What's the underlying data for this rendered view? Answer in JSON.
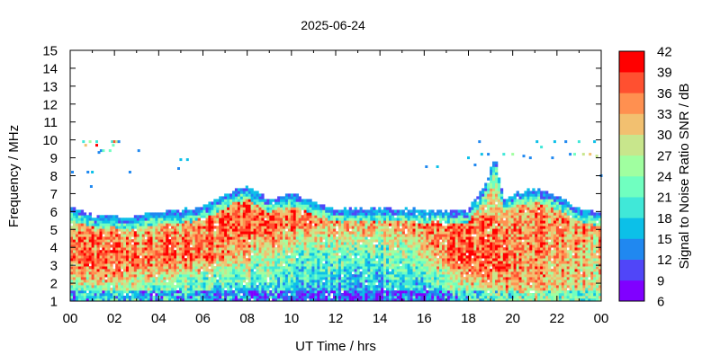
{
  "chart_data": {
    "type": "heatmap",
    "title": "2025-06-24",
    "xlabel": "UT Time / hrs",
    "ylabel": "Frequency / MHz",
    "colorbar_label": "Signal to Noise Ratio SNR / dB",
    "xlim": [
      0,
      24
    ],
    "ylim": [
      1,
      15
    ],
    "x_tick_labels": [
      "00",
      "02",
      "04",
      "06",
      "08",
      "10",
      "12",
      "14",
      "16",
      "18",
      "20",
      "22",
      "00"
    ],
    "y_tick_labels": [
      "1",
      "2",
      "3",
      "4",
      "5",
      "6",
      "7",
      "8",
      "9",
      "10",
      "11",
      "12",
      "13",
      "14",
      "15"
    ],
    "colorbar": {
      "range": [
        6,
        42
      ],
      "tick_labels": [
        "6",
        "9",
        "12",
        "15",
        "18",
        "21",
        "24",
        "27",
        "30",
        "33",
        "36",
        "39",
        "42"
      ],
      "colors": [
        "#8000ff",
        "#5046f8",
        "#2088f0",
        "#0cc0e8",
        "#40e8d8",
        "#70ffc0",
        "#a0ffa0",
        "#c8e68c",
        "#f2c070",
        "#ff9050",
        "#ff5030",
        "#ff0000"
      ]
    },
    "grid": false,
    "hours": [
      0,
      1,
      2,
      3,
      4,
      5,
      6,
      7,
      8,
      9,
      10,
      11,
      12,
      13,
      14,
      15,
      16,
      17,
      18,
      19,
      20,
      21,
      22,
      23
    ],
    "frequency_bands_mhz": [
      "1-2",
      "2-3",
      "3-4",
      "4-5",
      "5-6",
      "6-7"
    ],
    "snr_db": [
      [
        22,
        32,
        36,
        36,
        30,
        18
      ],
      [
        22,
        33,
        35,
        35,
        28,
        15
      ],
      [
        22,
        33,
        36,
        34,
        28,
        15
      ],
      [
        20,
        30,
        35,
        34,
        28,
        15
      ],
      [
        20,
        28,
        36,
        35,
        30,
        18
      ],
      [
        22,
        27,
        38,
        36,
        33,
        20
      ],
      [
        20,
        25,
        36,
        37,
        37,
        28
      ],
      [
        18,
        24,
        32,
        36,
        38,
        33
      ],
      [
        18,
        22,
        28,
        34,
        38,
        34
      ],
      [
        18,
        22,
        26,
        32,
        36,
        30
      ],
      [
        16,
        20,
        22,
        30,
        36,
        32
      ],
      [
        16,
        20,
        22,
        28,
        34,
        30
      ],
      [
        16,
        18,
        22,
        28,
        34,
        25
      ],
      [
        16,
        18,
        22,
        28,
        34,
        22
      ],
      [
        16,
        20,
        24,
        28,
        34,
        22
      ],
      [
        16,
        20,
        25,
        30,
        36,
        22
      ],
      [
        18,
        24,
        34,
        34,
        38,
        22
      ],
      [
        22,
        30,
        38,
        36,
        38,
        24
      ],
      [
        26,
        35,
        39,
        36,
        36,
        26
      ],
      [
        30,
        38,
        38,
        36,
        35,
        30
      ],
      [
        30,
        33,
        34,
        34,
        34,
        32
      ],
      [
        30,
        32,
        33,
        34,
        34,
        32
      ],
      [
        28,
        32,
        32,
        34,
        34,
        30
      ],
      [
        28,
        30,
        30,
        32,
        33,
        24
      ]
    ],
    "upper_frequency_mhz": {
      "hours": [
        0,
        1,
        2,
        3,
        4,
        5,
        6,
        7,
        8,
        9,
        10,
        11,
        12,
        13,
        14,
        15,
        16,
        17,
        18,
        18.8,
        19.2,
        19.6,
        20,
        21,
        22,
        23,
        24
      ],
      "values": [
        6.2,
        5.7,
        5.7,
        5.7,
        5.9,
        6.0,
        6.2,
        6.9,
        7.3,
        6.6,
        7.0,
        6.5,
        6.1,
        6.1,
        6.1,
        6.1,
        6.0,
        6.0,
        6.0,
        7.5,
        9.0,
        6.6,
        6.9,
        7.2,
        6.8,
        6.1,
        5.9
      ]
    },
    "sporadic_points": [
      [
        0.1,
        8.2,
        12
      ],
      [
        0.6,
        9.9,
        20
      ],
      [
        0.7,
        9.7,
        31
      ],
      [
        0.8,
        8.2,
        12
      ],
      [
        0.9,
        9.9,
        24
      ],
      [
        0.95,
        7.4,
        12
      ],
      [
        1.0,
        8.2,
        16
      ],
      [
        1.2,
        9.9,
        18
      ],
      [
        1.2,
        9.7,
        40
      ],
      [
        1.3,
        9.3,
        12
      ],
      [
        1.4,
        9.4,
        12
      ],
      [
        1.5,
        9.4,
        22
      ],
      [
        1.8,
        9.4,
        22
      ],
      [
        1.9,
        9.9,
        20
      ],
      [
        1.95,
        9.7,
        22
      ],
      [
        2.0,
        9.9,
        38
      ],
      [
        2.1,
        9.9,
        27
      ],
      [
        2.2,
        9.9,
        12
      ],
      [
        2.7,
        8.2,
        12
      ],
      [
        3.1,
        9.4,
        12
      ],
      [
        4.9,
        8.4,
        12
      ],
      [
        5.0,
        8.9,
        15
      ],
      [
        5.3,
        8.9,
        15
      ],
      [
        16.1,
        8.5,
        12
      ],
      [
        16.6,
        8.5,
        15
      ],
      [
        18.0,
        9.0,
        15
      ],
      [
        18.3,
        8.6,
        12
      ],
      [
        18.5,
        9.9,
        12
      ],
      [
        18.6,
        9.2,
        15
      ],
      [
        18.9,
        9.2,
        12
      ],
      [
        19.6,
        9.2,
        18
      ],
      [
        20.0,
        9.2,
        24
      ],
      [
        20.5,
        9.1,
        12
      ],
      [
        20.8,
        9.0,
        12
      ],
      [
        21.1,
        9.9,
        15
      ],
      [
        21.3,
        9.6,
        18
      ],
      [
        21.8,
        9.0,
        12
      ],
      [
        21.9,
        9.9,
        15
      ],
      [
        22.4,
        9.9,
        12
      ],
      [
        22.6,
        9.2,
        12
      ],
      [
        22.8,
        9.2,
        22
      ],
      [
        23.0,
        9.9,
        18
      ],
      [
        23.2,
        9.2,
        27
      ],
      [
        23.5,
        9.2,
        30
      ],
      [
        23.7,
        9.9,
        15
      ],
      [
        23.8,
        9.1,
        27
      ],
      [
        24.0,
        8.0,
        12
      ]
    ]
  }
}
